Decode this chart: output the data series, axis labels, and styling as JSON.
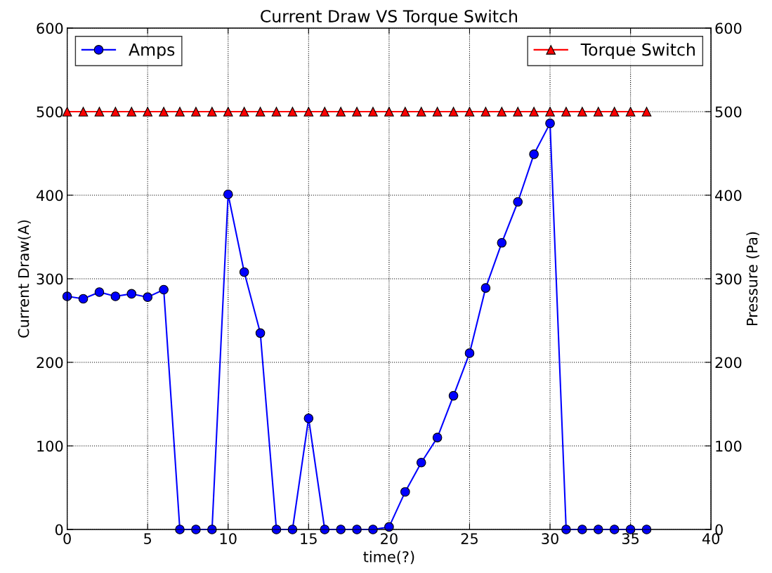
{
  "chart_data": {
    "type": "line",
    "title": "Current Draw VS Torque Switch",
    "xlabel": "time(?)",
    "ylabel": "Current Draw(A)",
    "y2label": "Pressure (Pa)",
    "x": [
      0,
      1,
      2,
      3,
      4,
      5,
      6,
      7,
      8,
      9,
      10,
      11,
      12,
      13,
      14,
      15,
      16,
      17,
      18,
      19,
      20,
      21,
      22,
      23,
      24,
      25,
      26,
      27,
      28,
      29,
      30,
      31,
      32,
      33,
      34,
      35,
      36
    ],
    "series": [
      {
        "name": "Amps",
        "color": "#0000ff",
        "marker": "circle",
        "values": [
          279,
          276,
          284,
          279,
          282,
          278,
          287,
          0,
          0,
          0,
          401,
          308,
          235,
          0,
          0,
          133,
          0,
          0,
          0,
          0,
          3,
          45,
          80,
          110,
          160,
          211,
          289,
          343,
          392,
          449,
          486,
          0,
          0,
          0,
          0,
          0,
          0
        ]
      },
      {
        "name": "Torque Switch",
        "color": "#ff0000",
        "marker": "triangle",
        "axis": "y2",
        "values": [
          500,
          500,
          500,
          500,
          500,
          500,
          500,
          500,
          500,
          500,
          500,
          500,
          500,
          500,
          500,
          500,
          500,
          500,
          500,
          500,
          500,
          500,
          500,
          500,
          500,
          500,
          500,
          500,
          500,
          500,
          500,
          500,
          500,
          500,
          500,
          500,
          500
        ]
      }
    ],
    "xlim": [
      0,
      40
    ],
    "xticks": [
      0,
      5,
      10,
      15,
      20,
      25,
      30,
      35,
      40
    ],
    "ylim": [
      0,
      600
    ],
    "yticks": [
      0,
      100,
      200,
      300,
      400,
      500,
      600
    ],
    "y2lim": [
      0,
      600
    ],
    "y2ticks": [
      0,
      100,
      200,
      300,
      400,
      500,
      600
    ],
    "grid": true,
    "legend": "top",
    "line_style": "solid"
  }
}
